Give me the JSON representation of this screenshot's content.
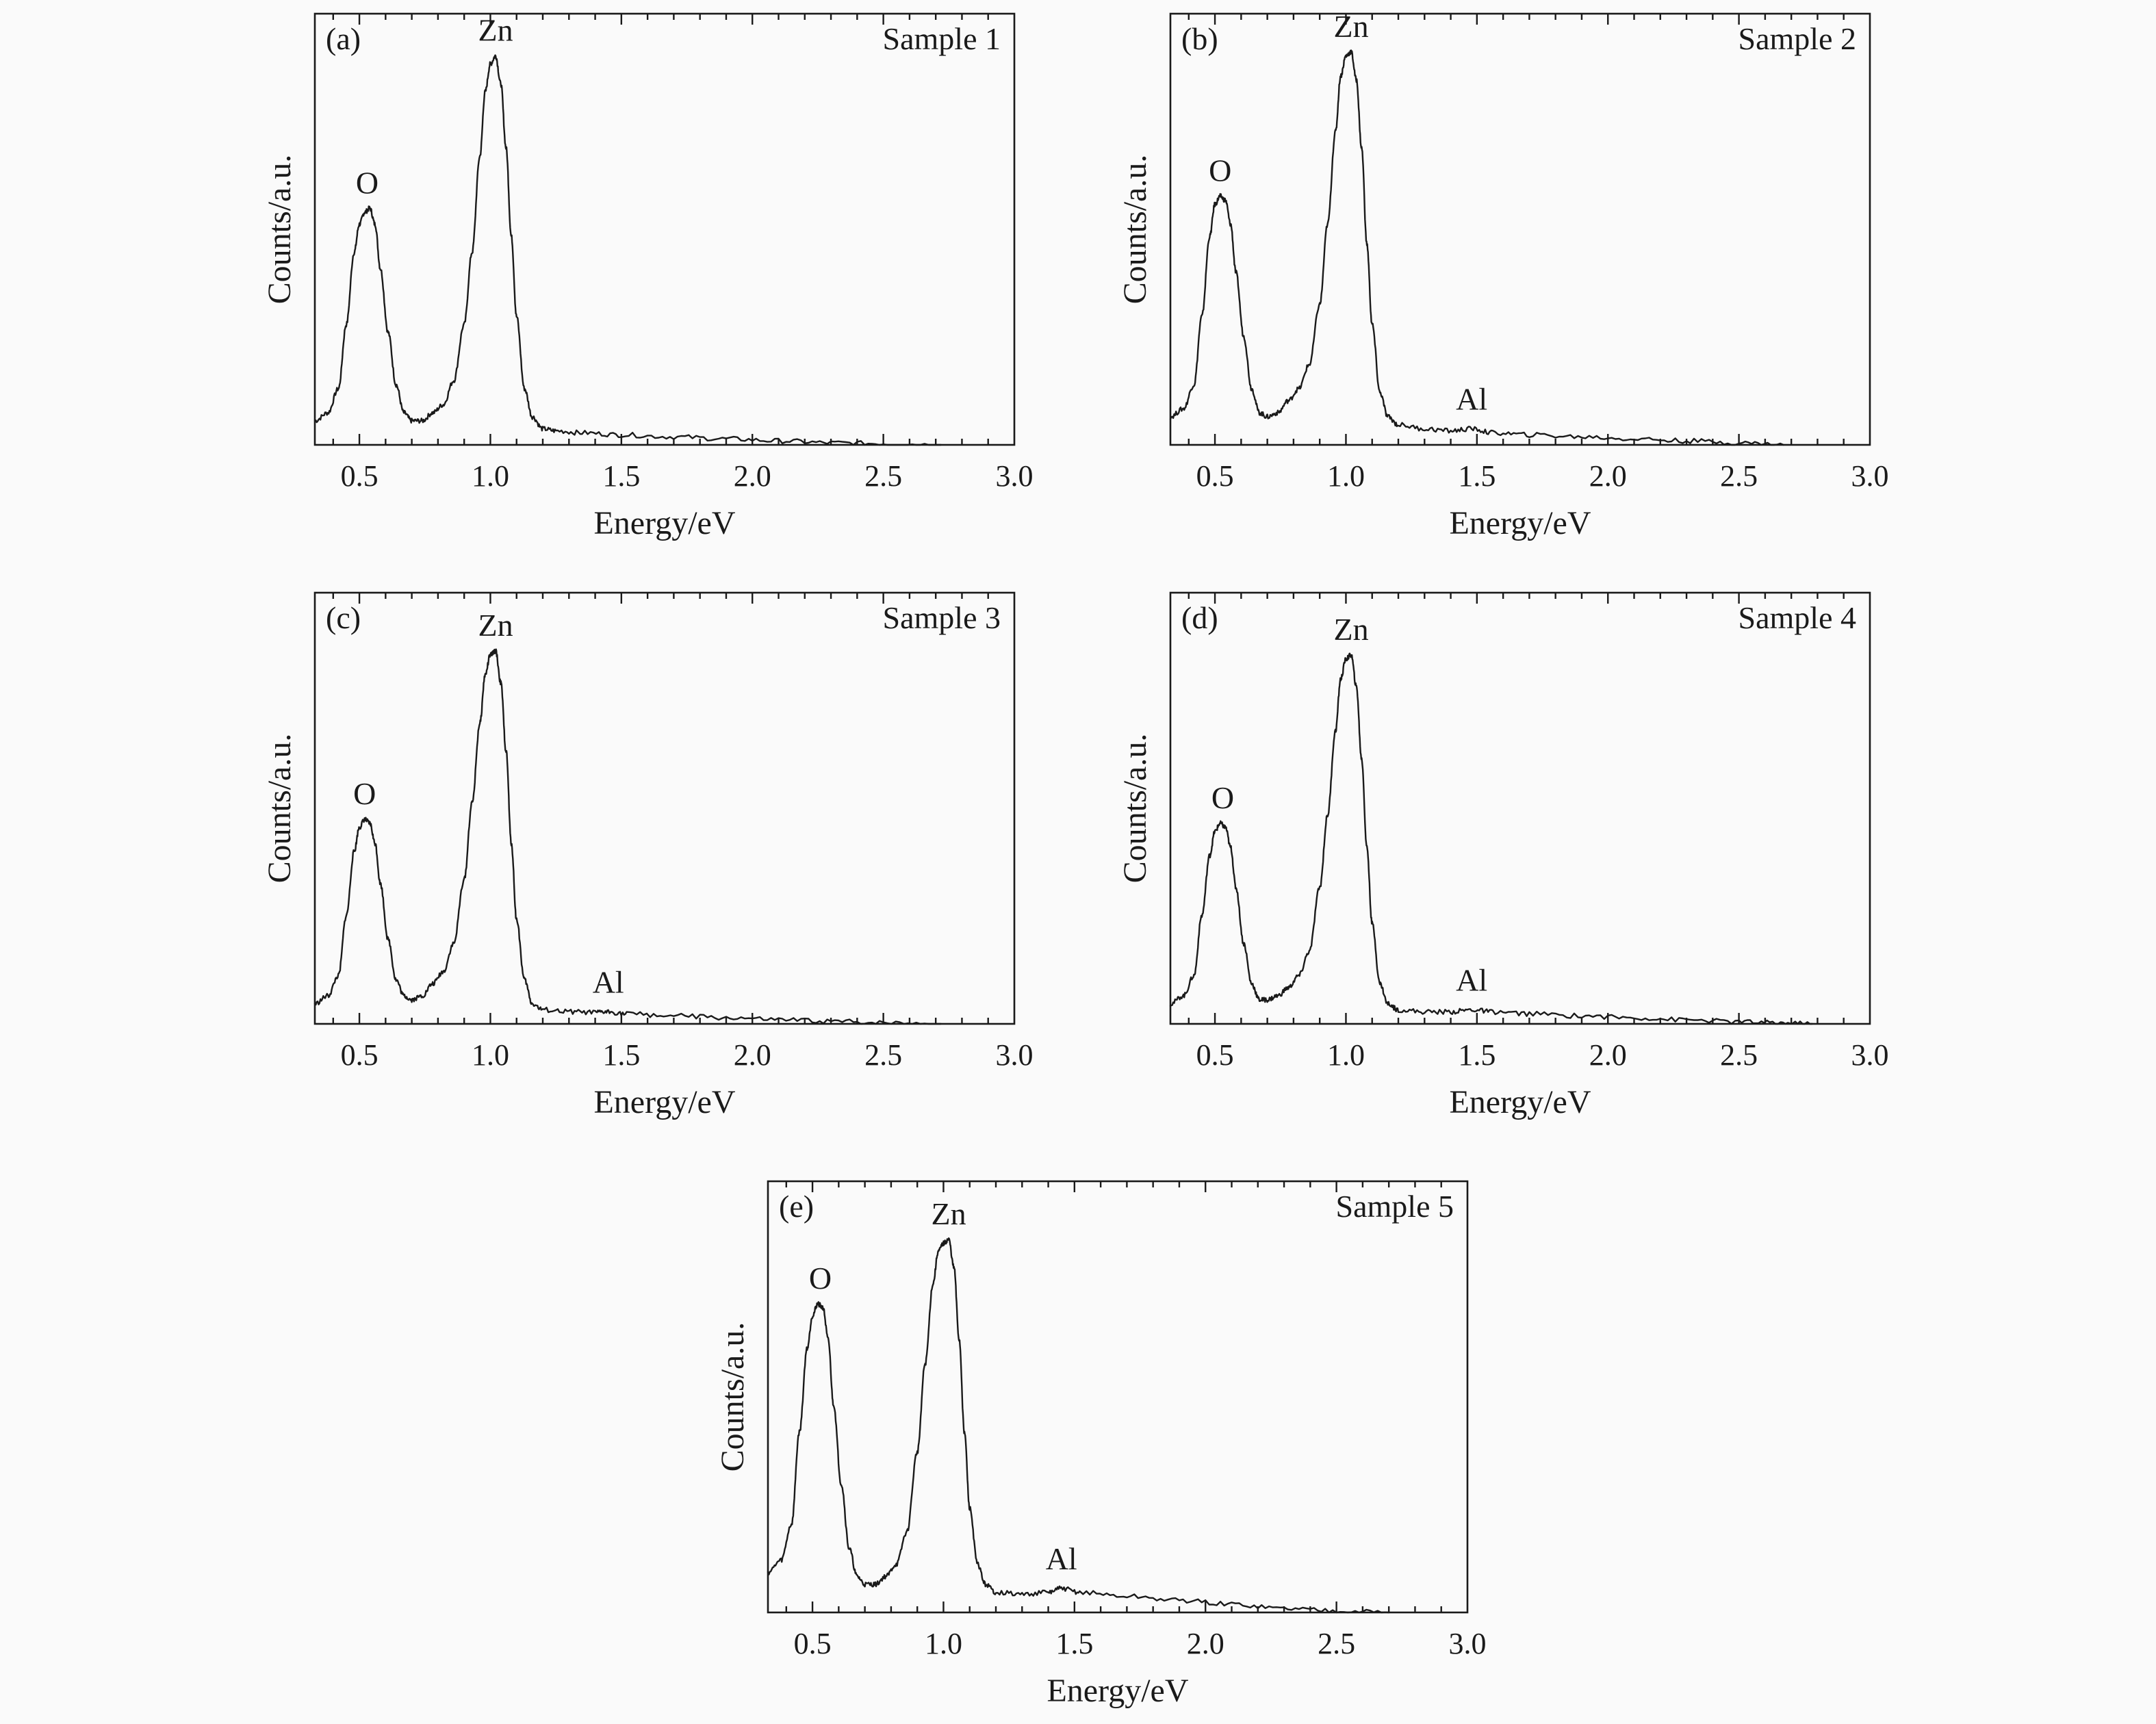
{
  "chart_data": [
    {
      "type": "line",
      "panel_label": "(a)",
      "sample": "Sample 1",
      "xlabel": "Energy/eV",
      "ylabel": "Counts/a.u.",
      "xlim": [
        0.33,
        3.0
      ],
      "ylim": [
        0,
        1
      ],
      "x_ticks": [
        "0.5",
        "1.0",
        "1.5",
        "2.0",
        "2.5",
        "3.0"
      ],
      "grid": false,
      "x_end": 2.72,
      "peaks": [
        {
          "element": "O",
          "x": 0.53,
          "y": 0.59
        },
        {
          "element": "Zn",
          "x": 1.02,
          "y": 0.97
        }
      ],
      "series": [
        {
          "x": [
            0.33,
            0.38,
            0.42,
            0.45,
            0.48,
            0.5,
            0.52,
            0.54,
            0.56,
            0.58,
            0.61,
            0.64,
            0.67,
            0.7,
            0.74,
            0.78,
            0.82,
            0.86,
            0.9,
            0.93,
            0.96,
            0.98,
            1.0,
            1.02,
            1.04,
            1.06,
            1.08,
            1.1,
            1.13,
            1.16,
            1.2,
            1.25,
            1.35,
            1.5,
            1.7,
            1.9,
            2.1,
            2.3,
            2.5,
            2.72
          ],
          "y": [
            0.06,
            0.08,
            0.14,
            0.3,
            0.48,
            0.55,
            0.58,
            0.59,
            0.55,
            0.44,
            0.28,
            0.15,
            0.08,
            0.06,
            0.06,
            0.08,
            0.1,
            0.16,
            0.3,
            0.48,
            0.72,
            0.88,
            0.95,
            0.97,
            0.9,
            0.74,
            0.52,
            0.32,
            0.14,
            0.07,
            0.04,
            0.035,
            0.03,
            0.025,
            0.02,
            0.015,
            0.01,
            0.005,
            0.003,
            0.0
          ]
        }
      ]
    },
    {
      "type": "line",
      "panel_label": "(b)",
      "sample": "Sample 2",
      "xlabel": "Energy/eV",
      "ylabel": "Counts/a.u.",
      "xlim": [
        0.33,
        3.0
      ],
      "ylim": [
        0,
        1
      ],
      "x_ticks": [
        "0.5",
        "1.0",
        "1.5",
        "2.0",
        "2.5",
        "3.0"
      ],
      "grid": false,
      "x_end": 2.67,
      "peaks": [
        {
          "element": "O",
          "x": 0.52,
          "y": 0.62
        },
        {
          "element": "Zn",
          "x": 1.02,
          "y": 0.98
        },
        {
          "element": "Al",
          "x": 1.48,
          "y": 0.04
        }
      ],
      "series": [
        {
          "x": [
            0.33,
            0.38,
            0.42,
            0.45,
            0.48,
            0.5,
            0.52,
            0.54,
            0.56,
            0.58,
            0.61,
            0.64,
            0.67,
            0.7,
            0.74,
            0.78,
            0.82,
            0.86,
            0.9,
            0.93,
            0.96,
            0.98,
            1.0,
            1.02,
            1.04,
            1.06,
            1.08,
            1.1,
            1.13,
            1.16,
            1.2,
            1.3,
            1.4,
            1.48,
            1.56,
            1.7,
            1.9,
            2.1,
            2.3,
            2.5,
            2.67
          ],
          "y": [
            0.07,
            0.09,
            0.15,
            0.32,
            0.52,
            0.6,
            0.62,
            0.61,
            0.55,
            0.43,
            0.27,
            0.14,
            0.08,
            0.07,
            0.08,
            0.11,
            0.14,
            0.2,
            0.35,
            0.55,
            0.78,
            0.92,
            0.97,
            0.98,
            0.91,
            0.74,
            0.5,
            0.3,
            0.13,
            0.07,
            0.05,
            0.04,
            0.035,
            0.04,
            0.03,
            0.025,
            0.02,
            0.015,
            0.01,
            0.005,
            0.0
          ]
        }
      ]
    },
    {
      "type": "line",
      "panel_label": "(c)",
      "sample": "Sample 3",
      "xlabel": "Energy/eV",
      "ylabel": "Counts/a.u.",
      "xlim": [
        0.33,
        3.0
      ],
      "ylim": [
        0,
        1
      ],
      "x_ticks": [
        "0.5",
        "1.0",
        "1.5",
        "2.0",
        "2.5",
        "3.0"
      ],
      "grid": false,
      "x_end": 2.72,
      "peaks": [
        {
          "element": "O",
          "x": 0.52,
          "y": 0.51
        },
        {
          "element": "Zn",
          "x": 1.02,
          "y": 0.93
        },
        {
          "element": "Al",
          "x": 1.45,
          "y": 0.03
        }
      ],
      "series": [
        {
          "x": [
            0.33,
            0.38,
            0.42,
            0.45,
            0.48,
            0.5,
            0.52,
            0.54,
            0.56,
            0.58,
            0.61,
            0.64,
            0.67,
            0.7,
            0.74,
            0.78,
            0.82,
            0.86,
            0.9,
            0.93,
            0.96,
            0.98,
            1.0,
            1.02,
            1.04,
            1.06,
            1.08,
            1.1,
            1.13,
            1.16,
            1.2,
            1.3,
            1.4,
            1.45,
            1.52,
            1.7,
            1.9,
            2.1,
            2.3,
            2.5,
            2.72
          ],
          "y": [
            0.05,
            0.07,
            0.12,
            0.27,
            0.43,
            0.49,
            0.51,
            0.5,
            0.45,
            0.35,
            0.21,
            0.11,
            0.07,
            0.06,
            0.07,
            0.1,
            0.13,
            0.2,
            0.36,
            0.55,
            0.75,
            0.87,
            0.92,
            0.93,
            0.85,
            0.68,
            0.45,
            0.26,
            0.11,
            0.05,
            0.035,
            0.03,
            0.028,
            0.03,
            0.025,
            0.02,
            0.015,
            0.01,
            0.006,
            0.003,
            0.0
          ]
        }
      ]
    },
    {
      "type": "line",
      "panel_label": "(d)",
      "sample": "Sample 4",
      "xlabel": "Energy/eV",
      "ylabel": "Counts/a.u.",
      "xlim": [
        0.33,
        3.0
      ],
      "ylim": [
        0,
        1
      ],
      "x_ticks": [
        "0.5",
        "1.0",
        "1.5",
        "2.0",
        "2.5",
        "3.0"
      ],
      "grid": false,
      "x_end": 2.78,
      "peaks": [
        {
          "element": "O",
          "x": 0.53,
          "y": 0.5
        },
        {
          "element": "Zn",
          "x": 1.02,
          "y": 0.92
        },
        {
          "element": "Al",
          "x": 1.48,
          "y": 0.035
        }
      ],
      "series": [
        {
          "x": [
            0.33,
            0.38,
            0.42,
            0.45,
            0.48,
            0.5,
            0.52,
            0.54,
            0.56,
            0.58,
            0.61,
            0.64,
            0.67,
            0.7,
            0.74,
            0.78,
            0.82,
            0.86,
            0.9,
            0.93,
            0.96,
            0.98,
            1.0,
            1.02,
            1.04,
            1.06,
            1.08,
            1.1,
            1.13,
            1.16,
            1.2,
            1.3,
            1.4,
            1.48,
            1.56,
            1.7,
            1.9,
            2.1,
            2.3,
            2.5,
            2.65,
            2.78
          ],
          "y": [
            0.05,
            0.07,
            0.12,
            0.27,
            0.42,
            0.48,
            0.5,
            0.49,
            0.44,
            0.34,
            0.2,
            0.1,
            0.06,
            0.06,
            0.07,
            0.09,
            0.12,
            0.18,
            0.34,
            0.52,
            0.73,
            0.86,
            0.91,
            0.92,
            0.84,
            0.66,
            0.44,
            0.25,
            0.1,
            0.05,
            0.035,
            0.03,
            0.03,
            0.035,
            0.03,
            0.025,
            0.02,
            0.015,
            0.01,
            0.005,
            0.002,
            0.0
          ]
        }
      ]
    },
    {
      "type": "line",
      "panel_label": "(e)",
      "sample": "Sample 5",
      "xlabel": "Energy/eV",
      "ylabel": "Counts/a.u.",
      "xlim": [
        0.33,
        3.0
      ],
      "ylim": [
        0,
        1
      ],
      "x_ticks": [
        "0.5",
        "1.0",
        "1.5",
        "2.0",
        "2.5",
        "3.0"
      ],
      "grid": false,
      "x_end": 2.7,
      "peaks": [
        {
          "element": "O",
          "x": 0.53,
          "y": 0.77
        },
        {
          "element": "Zn",
          "x": 1.02,
          "y": 0.93
        },
        {
          "element": "Al",
          "x": 1.45,
          "y": 0.06
        }
      ],
      "series": [
        {
          "x": [
            0.33,
            0.38,
            0.42,
            0.45,
            0.48,
            0.5,
            0.52,
            0.54,
            0.56,
            0.58,
            0.61,
            0.64,
            0.67,
            0.7,
            0.74,
            0.78,
            0.82,
            0.86,
            0.9,
            0.93,
            0.96,
            0.98,
            1.0,
            1.02,
            1.04,
            1.06,
            1.08,
            1.1,
            1.13,
            1.16,
            1.2,
            1.3,
            1.4,
            1.45,
            1.52,
            1.7,
            1.9,
            2.1,
            2.3,
            2.5,
            2.7
          ],
          "y": [
            0.1,
            0.13,
            0.22,
            0.45,
            0.66,
            0.74,
            0.77,
            0.76,
            0.68,
            0.52,
            0.32,
            0.16,
            0.09,
            0.07,
            0.07,
            0.09,
            0.12,
            0.2,
            0.4,
            0.62,
            0.82,
            0.9,
            0.92,
            0.93,
            0.86,
            0.68,
            0.45,
            0.26,
            0.12,
            0.07,
            0.05,
            0.045,
            0.05,
            0.06,
            0.05,
            0.04,
            0.03,
            0.02,
            0.01,
            0.005,
            0.0
          ]
        }
      ]
    }
  ]
}
